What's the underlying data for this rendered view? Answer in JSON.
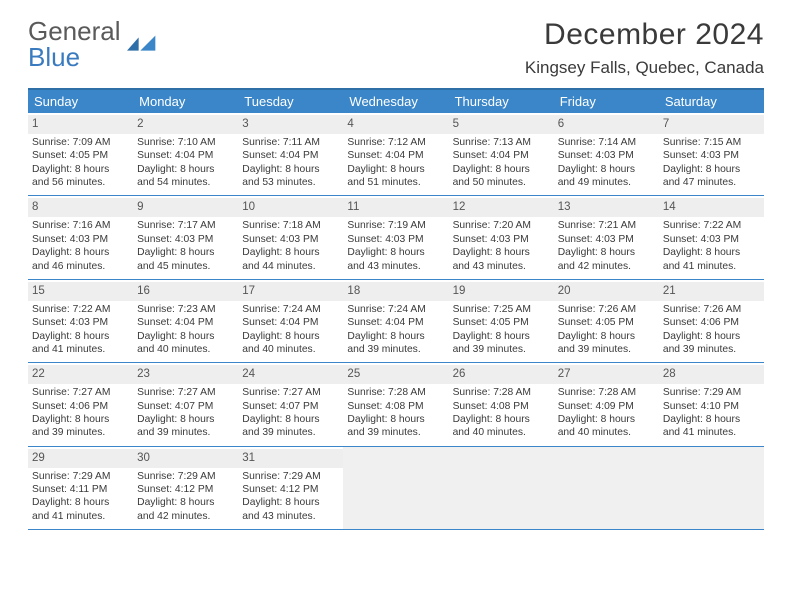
{
  "logo": {
    "top": "General",
    "bottom": "Blue"
  },
  "title": {
    "month": "December 2024",
    "location": "Kingsey Falls, Quebec, Canada"
  },
  "row_labels": {
    "sunrise": "Sunrise:",
    "sunset": "Sunset:",
    "daylight_prefix": "Daylight:"
  },
  "colors": {
    "header_bg": "#3a86c8",
    "header_text": "#ffffff",
    "rule": "#3a86c8",
    "daynum_bg": "#eeeeee",
    "body_text": "#3a3a3a",
    "logo_top": "#5a5a5a",
    "logo_bottom": "#3a7bbf",
    "blank_bg": "#f0f0f0"
  },
  "dow": [
    "Sunday",
    "Monday",
    "Tuesday",
    "Wednesday",
    "Thursday",
    "Friday",
    "Saturday"
  ],
  "weeks": [
    [
      {
        "n": "1",
        "sr": "7:09 AM",
        "ss": "4:05 PM",
        "dl": "8 hours and 56 minutes."
      },
      {
        "n": "2",
        "sr": "7:10 AM",
        "ss": "4:04 PM",
        "dl": "8 hours and 54 minutes."
      },
      {
        "n": "3",
        "sr": "7:11 AM",
        "ss": "4:04 PM",
        "dl": "8 hours and 53 minutes."
      },
      {
        "n": "4",
        "sr": "7:12 AM",
        "ss": "4:04 PM",
        "dl": "8 hours and 51 minutes."
      },
      {
        "n": "5",
        "sr": "7:13 AM",
        "ss": "4:04 PM",
        "dl": "8 hours and 50 minutes."
      },
      {
        "n": "6",
        "sr": "7:14 AM",
        "ss": "4:03 PM",
        "dl": "8 hours and 49 minutes."
      },
      {
        "n": "7",
        "sr": "7:15 AM",
        "ss": "4:03 PM",
        "dl": "8 hours and 47 minutes."
      }
    ],
    [
      {
        "n": "8",
        "sr": "7:16 AM",
        "ss": "4:03 PM",
        "dl": "8 hours and 46 minutes."
      },
      {
        "n": "9",
        "sr": "7:17 AM",
        "ss": "4:03 PM",
        "dl": "8 hours and 45 minutes."
      },
      {
        "n": "10",
        "sr": "7:18 AM",
        "ss": "4:03 PM",
        "dl": "8 hours and 44 minutes."
      },
      {
        "n": "11",
        "sr": "7:19 AM",
        "ss": "4:03 PM",
        "dl": "8 hours and 43 minutes."
      },
      {
        "n": "12",
        "sr": "7:20 AM",
        "ss": "4:03 PM",
        "dl": "8 hours and 43 minutes."
      },
      {
        "n": "13",
        "sr": "7:21 AM",
        "ss": "4:03 PM",
        "dl": "8 hours and 42 minutes."
      },
      {
        "n": "14",
        "sr": "7:22 AM",
        "ss": "4:03 PM",
        "dl": "8 hours and 41 minutes."
      }
    ],
    [
      {
        "n": "15",
        "sr": "7:22 AM",
        "ss": "4:03 PM",
        "dl": "8 hours and 41 minutes."
      },
      {
        "n": "16",
        "sr": "7:23 AM",
        "ss": "4:04 PM",
        "dl": "8 hours and 40 minutes."
      },
      {
        "n": "17",
        "sr": "7:24 AM",
        "ss": "4:04 PM",
        "dl": "8 hours and 40 minutes."
      },
      {
        "n": "18",
        "sr": "7:24 AM",
        "ss": "4:04 PM",
        "dl": "8 hours and 39 minutes."
      },
      {
        "n": "19",
        "sr": "7:25 AM",
        "ss": "4:05 PM",
        "dl": "8 hours and 39 minutes."
      },
      {
        "n": "20",
        "sr": "7:26 AM",
        "ss": "4:05 PM",
        "dl": "8 hours and 39 minutes."
      },
      {
        "n": "21",
        "sr": "7:26 AM",
        "ss": "4:06 PM",
        "dl": "8 hours and 39 minutes."
      }
    ],
    [
      {
        "n": "22",
        "sr": "7:27 AM",
        "ss": "4:06 PM",
        "dl": "8 hours and 39 minutes."
      },
      {
        "n": "23",
        "sr": "7:27 AM",
        "ss": "4:07 PM",
        "dl": "8 hours and 39 minutes."
      },
      {
        "n": "24",
        "sr": "7:27 AM",
        "ss": "4:07 PM",
        "dl": "8 hours and 39 minutes."
      },
      {
        "n": "25",
        "sr": "7:28 AM",
        "ss": "4:08 PM",
        "dl": "8 hours and 39 minutes."
      },
      {
        "n": "26",
        "sr": "7:28 AM",
        "ss": "4:08 PM",
        "dl": "8 hours and 40 minutes."
      },
      {
        "n": "27",
        "sr": "7:28 AM",
        "ss": "4:09 PM",
        "dl": "8 hours and 40 minutes."
      },
      {
        "n": "28",
        "sr": "7:29 AM",
        "ss": "4:10 PM",
        "dl": "8 hours and 41 minutes."
      }
    ],
    [
      {
        "n": "29",
        "sr": "7:29 AM",
        "ss": "4:11 PM",
        "dl": "8 hours and 41 minutes."
      },
      {
        "n": "30",
        "sr": "7:29 AM",
        "ss": "4:12 PM",
        "dl": "8 hours and 42 minutes."
      },
      {
        "n": "31",
        "sr": "7:29 AM",
        "ss": "4:12 PM",
        "dl": "8 hours and 43 minutes."
      },
      null,
      null,
      null,
      null
    ]
  ]
}
